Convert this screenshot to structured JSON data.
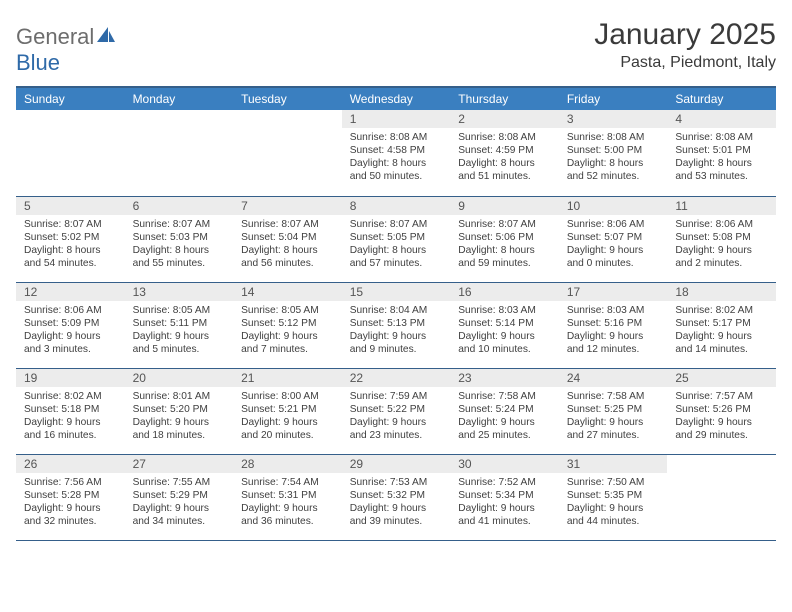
{
  "logo": {
    "text1": "General",
    "text2": "Blue"
  },
  "title": "January 2025",
  "location": "Pasta, Piedmont, Italy",
  "colors": {
    "header_bg": "#3a7fc0",
    "header_border": "#355f8a",
    "daynum_bg": "#ececec",
    "text": "#3a3a3a"
  },
  "days_of_week": [
    "Sunday",
    "Monday",
    "Tuesday",
    "Wednesday",
    "Thursday",
    "Friday",
    "Saturday"
  ],
  "weeks": [
    [
      null,
      null,
      null,
      {
        "n": "1",
        "sr": "8:08 AM",
        "ss": "4:58 PM",
        "dh": "8",
        "dm": "50"
      },
      {
        "n": "2",
        "sr": "8:08 AM",
        "ss": "4:59 PM",
        "dh": "8",
        "dm": "51"
      },
      {
        "n": "3",
        "sr": "8:08 AM",
        "ss": "5:00 PM",
        "dh": "8",
        "dm": "52"
      },
      {
        "n": "4",
        "sr": "8:08 AM",
        "ss": "5:01 PM",
        "dh": "8",
        "dm": "53"
      }
    ],
    [
      {
        "n": "5",
        "sr": "8:07 AM",
        "ss": "5:02 PM",
        "dh": "8",
        "dm": "54"
      },
      {
        "n": "6",
        "sr": "8:07 AM",
        "ss": "5:03 PM",
        "dh": "8",
        "dm": "55"
      },
      {
        "n": "7",
        "sr": "8:07 AM",
        "ss": "5:04 PM",
        "dh": "8",
        "dm": "56"
      },
      {
        "n": "8",
        "sr": "8:07 AM",
        "ss": "5:05 PM",
        "dh": "8",
        "dm": "57"
      },
      {
        "n": "9",
        "sr": "8:07 AM",
        "ss": "5:06 PM",
        "dh": "8",
        "dm": "59"
      },
      {
        "n": "10",
        "sr": "8:06 AM",
        "ss": "5:07 PM",
        "dh": "9",
        "dm": "0"
      },
      {
        "n": "11",
        "sr": "8:06 AM",
        "ss": "5:08 PM",
        "dh": "9",
        "dm": "2"
      }
    ],
    [
      {
        "n": "12",
        "sr": "8:06 AM",
        "ss": "5:09 PM",
        "dh": "9",
        "dm": "3"
      },
      {
        "n": "13",
        "sr": "8:05 AM",
        "ss": "5:11 PM",
        "dh": "9",
        "dm": "5"
      },
      {
        "n": "14",
        "sr": "8:05 AM",
        "ss": "5:12 PM",
        "dh": "9",
        "dm": "7"
      },
      {
        "n": "15",
        "sr": "8:04 AM",
        "ss": "5:13 PM",
        "dh": "9",
        "dm": "9"
      },
      {
        "n": "16",
        "sr": "8:03 AM",
        "ss": "5:14 PM",
        "dh": "9",
        "dm": "10"
      },
      {
        "n": "17",
        "sr": "8:03 AM",
        "ss": "5:16 PM",
        "dh": "9",
        "dm": "12"
      },
      {
        "n": "18",
        "sr": "8:02 AM",
        "ss": "5:17 PM",
        "dh": "9",
        "dm": "14"
      }
    ],
    [
      {
        "n": "19",
        "sr": "8:02 AM",
        "ss": "5:18 PM",
        "dh": "9",
        "dm": "16"
      },
      {
        "n": "20",
        "sr": "8:01 AM",
        "ss": "5:20 PM",
        "dh": "9",
        "dm": "18"
      },
      {
        "n": "21",
        "sr": "8:00 AM",
        "ss": "5:21 PM",
        "dh": "9",
        "dm": "20"
      },
      {
        "n": "22",
        "sr": "7:59 AM",
        "ss": "5:22 PM",
        "dh": "9",
        "dm": "23"
      },
      {
        "n": "23",
        "sr": "7:58 AM",
        "ss": "5:24 PM",
        "dh": "9",
        "dm": "25"
      },
      {
        "n": "24",
        "sr": "7:58 AM",
        "ss": "5:25 PM",
        "dh": "9",
        "dm": "27"
      },
      {
        "n": "25",
        "sr": "7:57 AM",
        "ss": "5:26 PM",
        "dh": "9",
        "dm": "29"
      }
    ],
    [
      {
        "n": "26",
        "sr": "7:56 AM",
        "ss": "5:28 PM",
        "dh": "9",
        "dm": "32"
      },
      {
        "n": "27",
        "sr": "7:55 AM",
        "ss": "5:29 PM",
        "dh": "9",
        "dm": "34"
      },
      {
        "n": "28",
        "sr": "7:54 AM",
        "ss": "5:31 PM",
        "dh": "9",
        "dm": "36"
      },
      {
        "n": "29",
        "sr": "7:53 AM",
        "ss": "5:32 PM",
        "dh": "9",
        "dm": "39"
      },
      {
        "n": "30",
        "sr": "7:52 AM",
        "ss": "5:34 PM",
        "dh": "9",
        "dm": "41"
      },
      {
        "n": "31",
        "sr": "7:50 AM",
        "ss": "5:35 PM",
        "dh": "9",
        "dm": "44"
      },
      null
    ]
  ]
}
